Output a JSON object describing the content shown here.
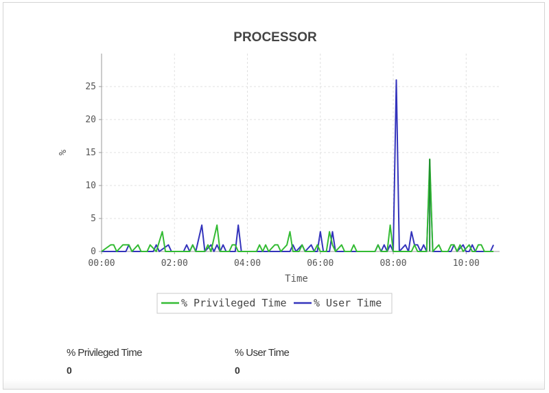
{
  "colors": {
    "privileged": "#33bb33",
    "privileged_dark": "#1e8a2e",
    "user": "#3333bb",
    "grid": "#e0e0e0",
    "axis": "#999999"
  },
  "chart_data": {
    "type": "line",
    "title": "PROCESSOR",
    "xlabel": "Time",
    "ylabel": "%",
    "xlim": [
      "00:00",
      "10:55"
    ],
    "ylim": [
      0,
      30
    ],
    "x_ticks": [
      "00:00",
      "02:00",
      "04:00",
      "06:00",
      "08:00",
      "10:00"
    ],
    "y_ticks": [
      0,
      5,
      10,
      15,
      20,
      25
    ],
    "grid": true,
    "legend_position": "bottom-center",
    "series": [
      {
        "name": "% Privileged Time",
        "color": "#33bb33",
        "points": [
          [
            "00:00",
            0
          ],
          [
            "00:15",
            1
          ],
          [
            "00:20",
            1
          ],
          [
            "00:25",
            0
          ],
          [
            "00:35",
            1
          ],
          [
            "00:45",
            1
          ],
          [
            "00:50",
            0
          ],
          [
            "01:00",
            1
          ],
          [
            "01:05",
            0
          ],
          [
            "01:15",
            0
          ],
          [
            "01:20",
            1
          ],
          [
            "01:30",
            0
          ],
          [
            "01:40",
            3
          ],
          [
            "01:45",
            0
          ],
          [
            "02:25",
            0
          ],
          [
            "02:30",
            1
          ],
          [
            "02:35",
            0
          ],
          [
            "02:50",
            0
          ],
          [
            "02:55",
            1
          ],
          [
            "03:00",
            0
          ],
          [
            "03:10",
            4
          ],
          [
            "03:15",
            0
          ],
          [
            "03:30",
            0
          ],
          [
            "03:35",
            1
          ],
          [
            "03:40",
            1
          ],
          [
            "03:45",
            0
          ],
          [
            "04:15",
            0
          ],
          [
            "04:20",
            1
          ],
          [
            "04:25",
            0
          ],
          [
            "04:30",
            1
          ],
          [
            "04:35",
            0
          ],
          [
            "04:45",
            1
          ],
          [
            "04:50",
            1
          ],
          [
            "04:55",
            0
          ],
          [
            "05:05",
            1
          ],
          [
            "05:10",
            3
          ],
          [
            "05:15",
            0
          ],
          [
            "05:25",
            0
          ],
          [
            "05:30",
            1
          ],
          [
            "05:35",
            0
          ],
          [
            "05:50",
            0
          ],
          [
            "05:55",
            1
          ],
          [
            "06:00",
            0
          ],
          [
            "06:10",
            0
          ],
          [
            "06:15",
            3
          ],
          [
            "06:20",
            1
          ],
          [
            "06:25",
            0
          ],
          [
            "06:35",
            1
          ],
          [
            "06:40",
            0
          ],
          [
            "06:50",
            0
          ],
          [
            "06:55",
            1
          ],
          [
            "07:00",
            0
          ],
          [
            "07:30",
            0
          ],
          [
            "07:35",
            1
          ],
          [
            "07:40",
            0
          ],
          [
            "07:50",
            0
          ],
          [
            "07:55",
            4
          ],
          [
            "08:00",
            0
          ],
          [
            "08:30",
            0
          ],
          [
            "08:35",
            1
          ],
          [
            "08:40",
            0
          ],
          [
            "08:55",
            0
          ],
          [
            "09:00",
            14
          ],
          [
            "09:05",
            0
          ],
          [
            "09:15",
            1
          ],
          [
            "09:20",
            0
          ],
          [
            "09:30",
            0
          ],
          [
            "09:35",
            1
          ],
          [
            "09:40",
            1
          ],
          [
            "09:45",
            0
          ],
          [
            "09:50",
            1
          ],
          [
            "09:55",
            0
          ],
          [
            "10:05",
            1
          ],
          [
            "10:10",
            0
          ],
          [
            "10:15",
            0
          ],
          [
            "10:20",
            1
          ],
          [
            "10:25",
            1
          ],
          [
            "10:30",
            0
          ],
          [
            "10:45",
            0
          ]
        ]
      },
      {
        "name": "% User Time",
        "color": "#3333bb",
        "points": [
          [
            "00:00",
            0
          ],
          [
            "00:40",
            0
          ],
          [
            "00:45",
            1
          ],
          [
            "00:50",
            0
          ],
          [
            "01:25",
            0
          ],
          [
            "01:30",
            1
          ],
          [
            "01:35",
            0
          ],
          [
            "01:50",
            1
          ],
          [
            "01:55",
            0
          ],
          [
            "02:15",
            0
          ],
          [
            "02:20",
            1
          ],
          [
            "02:25",
            0
          ],
          [
            "02:30",
            1
          ],
          [
            "02:35",
            0
          ],
          [
            "02:45",
            4
          ],
          [
            "02:50",
            0
          ],
          [
            "03:00",
            1
          ],
          [
            "03:05",
            0
          ],
          [
            "03:10",
            1
          ],
          [
            "03:15",
            0
          ],
          [
            "03:20",
            1
          ],
          [
            "03:25",
            0
          ],
          [
            "03:40",
            0
          ],
          [
            "03:45",
            4
          ],
          [
            "03:50",
            0
          ],
          [
            "05:10",
            0
          ],
          [
            "05:15",
            1
          ],
          [
            "05:20",
            0
          ],
          [
            "05:30",
            1
          ],
          [
            "05:35",
            0
          ],
          [
            "05:45",
            1
          ],
          [
            "05:50",
            0
          ],
          [
            "05:55",
            0
          ],
          [
            "06:00",
            3
          ],
          [
            "06:05",
            0
          ],
          [
            "06:15",
            0
          ],
          [
            "06:20",
            3
          ],
          [
            "06:25",
            0
          ],
          [
            "07:30",
            0
          ],
          [
            "07:35",
            1
          ],
          [
            "07:40",
            0
          ],
          [
            "07:45",
            1
          ],
          [
            "07:50",
            0
          ],
          [
            "07:55",
            1
          ],
          [
            "08:00",
            0
          ],
          [
            "08:05",
            26
          ],
          [
            "08:10",
            0
          ],
          [
            "08:20",
            1
          ],
          [
            "08:25",
            0
          ],
          [
            "08:30",
            3
          ],
          [
            "08:35",
            1
          ],
          [
            "08:40",
            1
          ],
          [
            "08:45",
            0
          ],
          [
            "08:50",
            1
          ],
          [
            "08:55",
            0
          ],
          [
            "09:00",
            13
          ],
          [
            "09:05",
            0
          ],
          [
            "09:35",
            0
          ],
          [
            "09:40",
            1
          ],
          [
            "09:45",
            0
          ],
          [
            "09:55",
            1
          ],
          [
            "10:00",
            0
          ],
          [
            "10:05",
            0
          ],
          [
            "10:10",
            1
          ],
          [
            "10:15",
            0
          ],
          [
            "10:40",
            0
          ],
          [
            "10:45",
            1
          ]
        ]
      }
    ]
  },
  "stats": [
    {
      "label": "% Privileged Time",
      "value": "0"
    },
    {
      "label": "% User Time",
      "value": "0"
    }
  ]
}
